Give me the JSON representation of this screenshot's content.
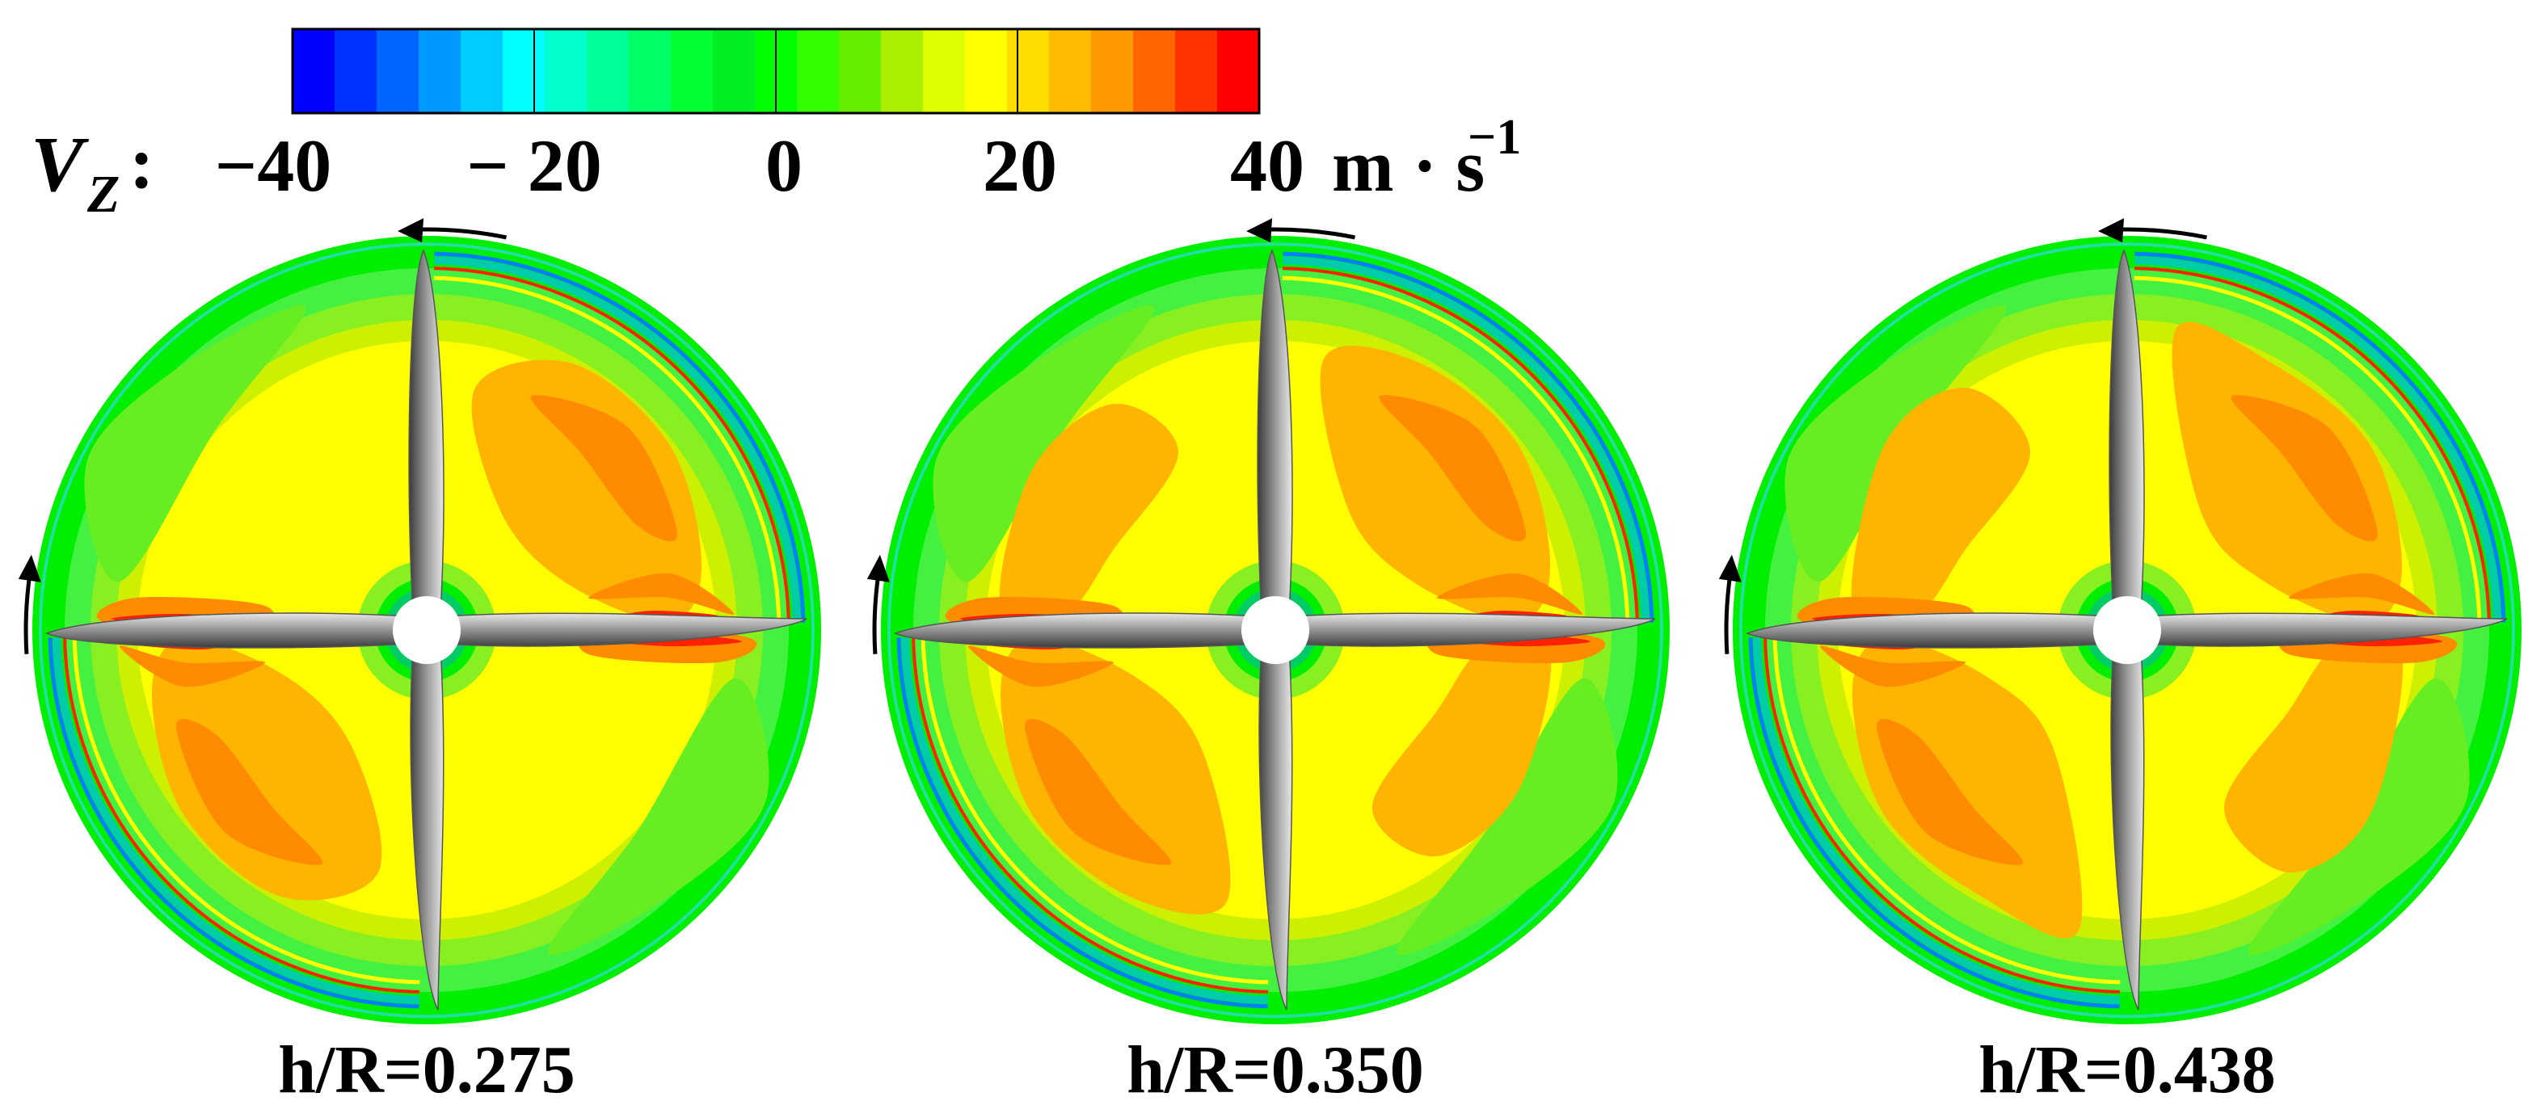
{
  "colorbar": {
    "variable_symbol": "V",
    "variable_subscript": "Z",
    "separator": ":",
    "tick_labels": [
      "−40",
      "− 20",
      "0",
      "20",
      "40"
    ],
    "unit_label": "m · s",
    "unit_exponent": "−1",
    "range": [
      -40,
      40
    ],
    "levels": 21,
    "colors": [
      "#0000ff",
      "#0033ff",
      "#0066ff",
      "#0099ff",
      "#00ccff",
      "#00ffff",
      "#00ffcc",
      "#00ff99",
      "#00ff66",
      "#00ff33",
      "#00ee22",
      "#00ff00",
      "#33ff00",
      "#66ee00",
      "#aaee00",
      "#ddff00",
      "#ffff00",
      "#ffdd00",
      "#ffbb00",
      "#ff9900",
      "#ff6600",
      "#ff3300",
      "#ff0000"
    ]
  },
  "panels": [
    {
      "label": "h/R=0.275",
      "h_over_R": 0.275
    },
    {
      "label": "h/R=0.350",
      "h_over_R": 0.35
    },
    {
      "label": "h/R=0.438",
      "h_over_R": 0.438
    }
  ],
  "colors": {
    "green": "#00ee00",
    "cyan": "#00ccaa",
    "blue_edge": "#0080ff",
    "yellow": "#ffff00",
    "yellow_green": "#ccf000",
    "orange": "#ffb400",
    "dark_orange": "#ff8c00",
    "red": "#ff2200",
    "blade": "#9a9a9a",
    "hub": "#ffffff"
  }
}
